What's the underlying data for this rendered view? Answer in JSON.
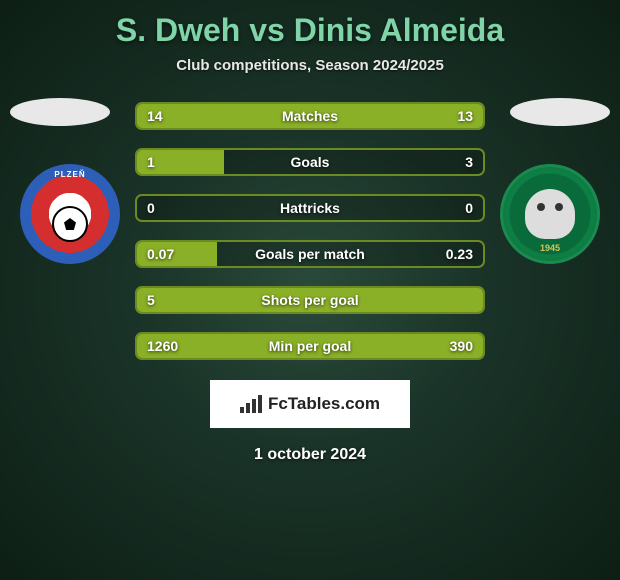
{
  "title": "S. Dweh vs Dinis Almeida",
  "subtitle": "Club competitions, Season 2024/2025",
  "date": "1 october 2024",
  "logo_text": "FcTables.com",
  "colors": {
    "title": "#7fd4a8",
    "bar_border": "#6b8a1f",
    "bar_fill": "#8ab027",
    "background_center": "#2a4a3a",
    "background_edge": "#0d1f15"
  },
  "crests": {
    "left": {
      "name": "FC Viktoria Plzeň",
      "text": "PLZEŇ"
    },
    "right": {
      "name": "PFC Ludogorets",
      "year": "1945"
    }
  },
  "stats": [
    {
      "label": "Matches",
      "left_val": "14",
      "right_val": "13",
      "left_pct": 52,
      "right_pct": 48,
      "fill_mode": "full"
    },
    {
      "label": "Goals",
      "left_val": "1",
      "right_val": "3",
      "left_pct": 25,
      "right_pct": 75,
      "fill_mode": "left"
    },
    {
      "label": "Hattricks",
      "left_val": "0",
      "right_val": "0",
      "left_pct": 0,
      "right_pct": 0,
      "fill_mode": "none"
    },
    {
      "label": "Goals per match",
      "left_val": "0.07",
      "right_val": "0.23",
      "left_pct": 23,
      "right_pct": 77,
      "fill_mode": "left"
    },
    {
      "label": "Shots per goal",
      "left_val": "5",
      "right_val": "",
      "left_pct": 100,
      "right_pct": 0,
      "fill_mode": "full"
    },
    {
      "label": "Min per goal",
      "left_val": "1260",
      "right_val": "390",
      "left_pct": 76,
      "right_pct": 24,
      "fill_mode": "full"
    }
  ]
}
